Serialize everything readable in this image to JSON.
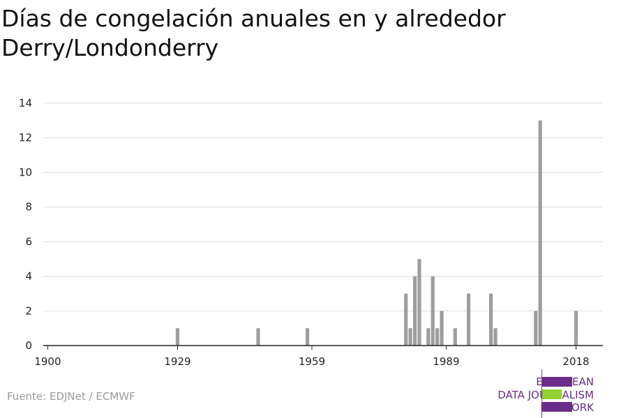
{
  "title": "Días de congelación anuales en y alrededor Derry/Londonderry",
  "source": "Fuente: EDJNet / ECMWF",
  "logo": {
    "lines": [
      "EUROPEAN",
      "DATA JOURNALISM",
      "NETWORK"
    ],
    "colors": {
      "purple": "#6b2d8a",
      "green": "#8fd12e"
    }
  },
  "chart_data": {
    "type": "bar",
    "title": "Días de congelación anuales en y alrededor Derry/Londonderry",
    "xlabel": "",
    "ylabel": "",
    "x_ticks": [
      1900,
      1929,
      1959,
      1989,
      2018
    ],
    "y_ticks": [
      0,
      2,
      4,
      6,
      8,
      10,
      12,
      14
    ],
    "xlim": [
      1899,
      2024
    ],
    "ylim": [
      0,
      14
    ],
    "grid": true,
    "bar_color": "#9e9e9e",
    "points": [
      {
        "year": 1929,
        "value": 1
      },
      {
        "year": 1947,
        "value": 1
      },
      {
        "year": 1958,
        "value": 1
      },
      {
        "year": 1980,
        "value": 3
      },
      {
        "year": 1981,
        "value": 1
      },
      {
        "year": 1982,
        "value": 4
      },
      {
        "year": 1983,
        "value": 5
      },
      {
        "year": 1985,
        "value": 1
      },
      {
        "year": 1986,
        "value": 4
      },
      {
        "year": 1987,
        "value": 1
      },
      {
        "year": 1988,
        "value": 2
      },
      {
        "year": 1991,
        "value": 1
      },
      {
        "year": 1994,
        "value": 3
      },
      {
        "year": 1999,
        "value": 3
      },
      {
        "year": 2000,
        "value": 1
      },
      {
        "year": 2009,
        "value": 2
      },
      {
        "year": 2010,
        "value": 13
      },
      {
        "year": 2018,
        "value": 2
      }
    ]
  }
}
